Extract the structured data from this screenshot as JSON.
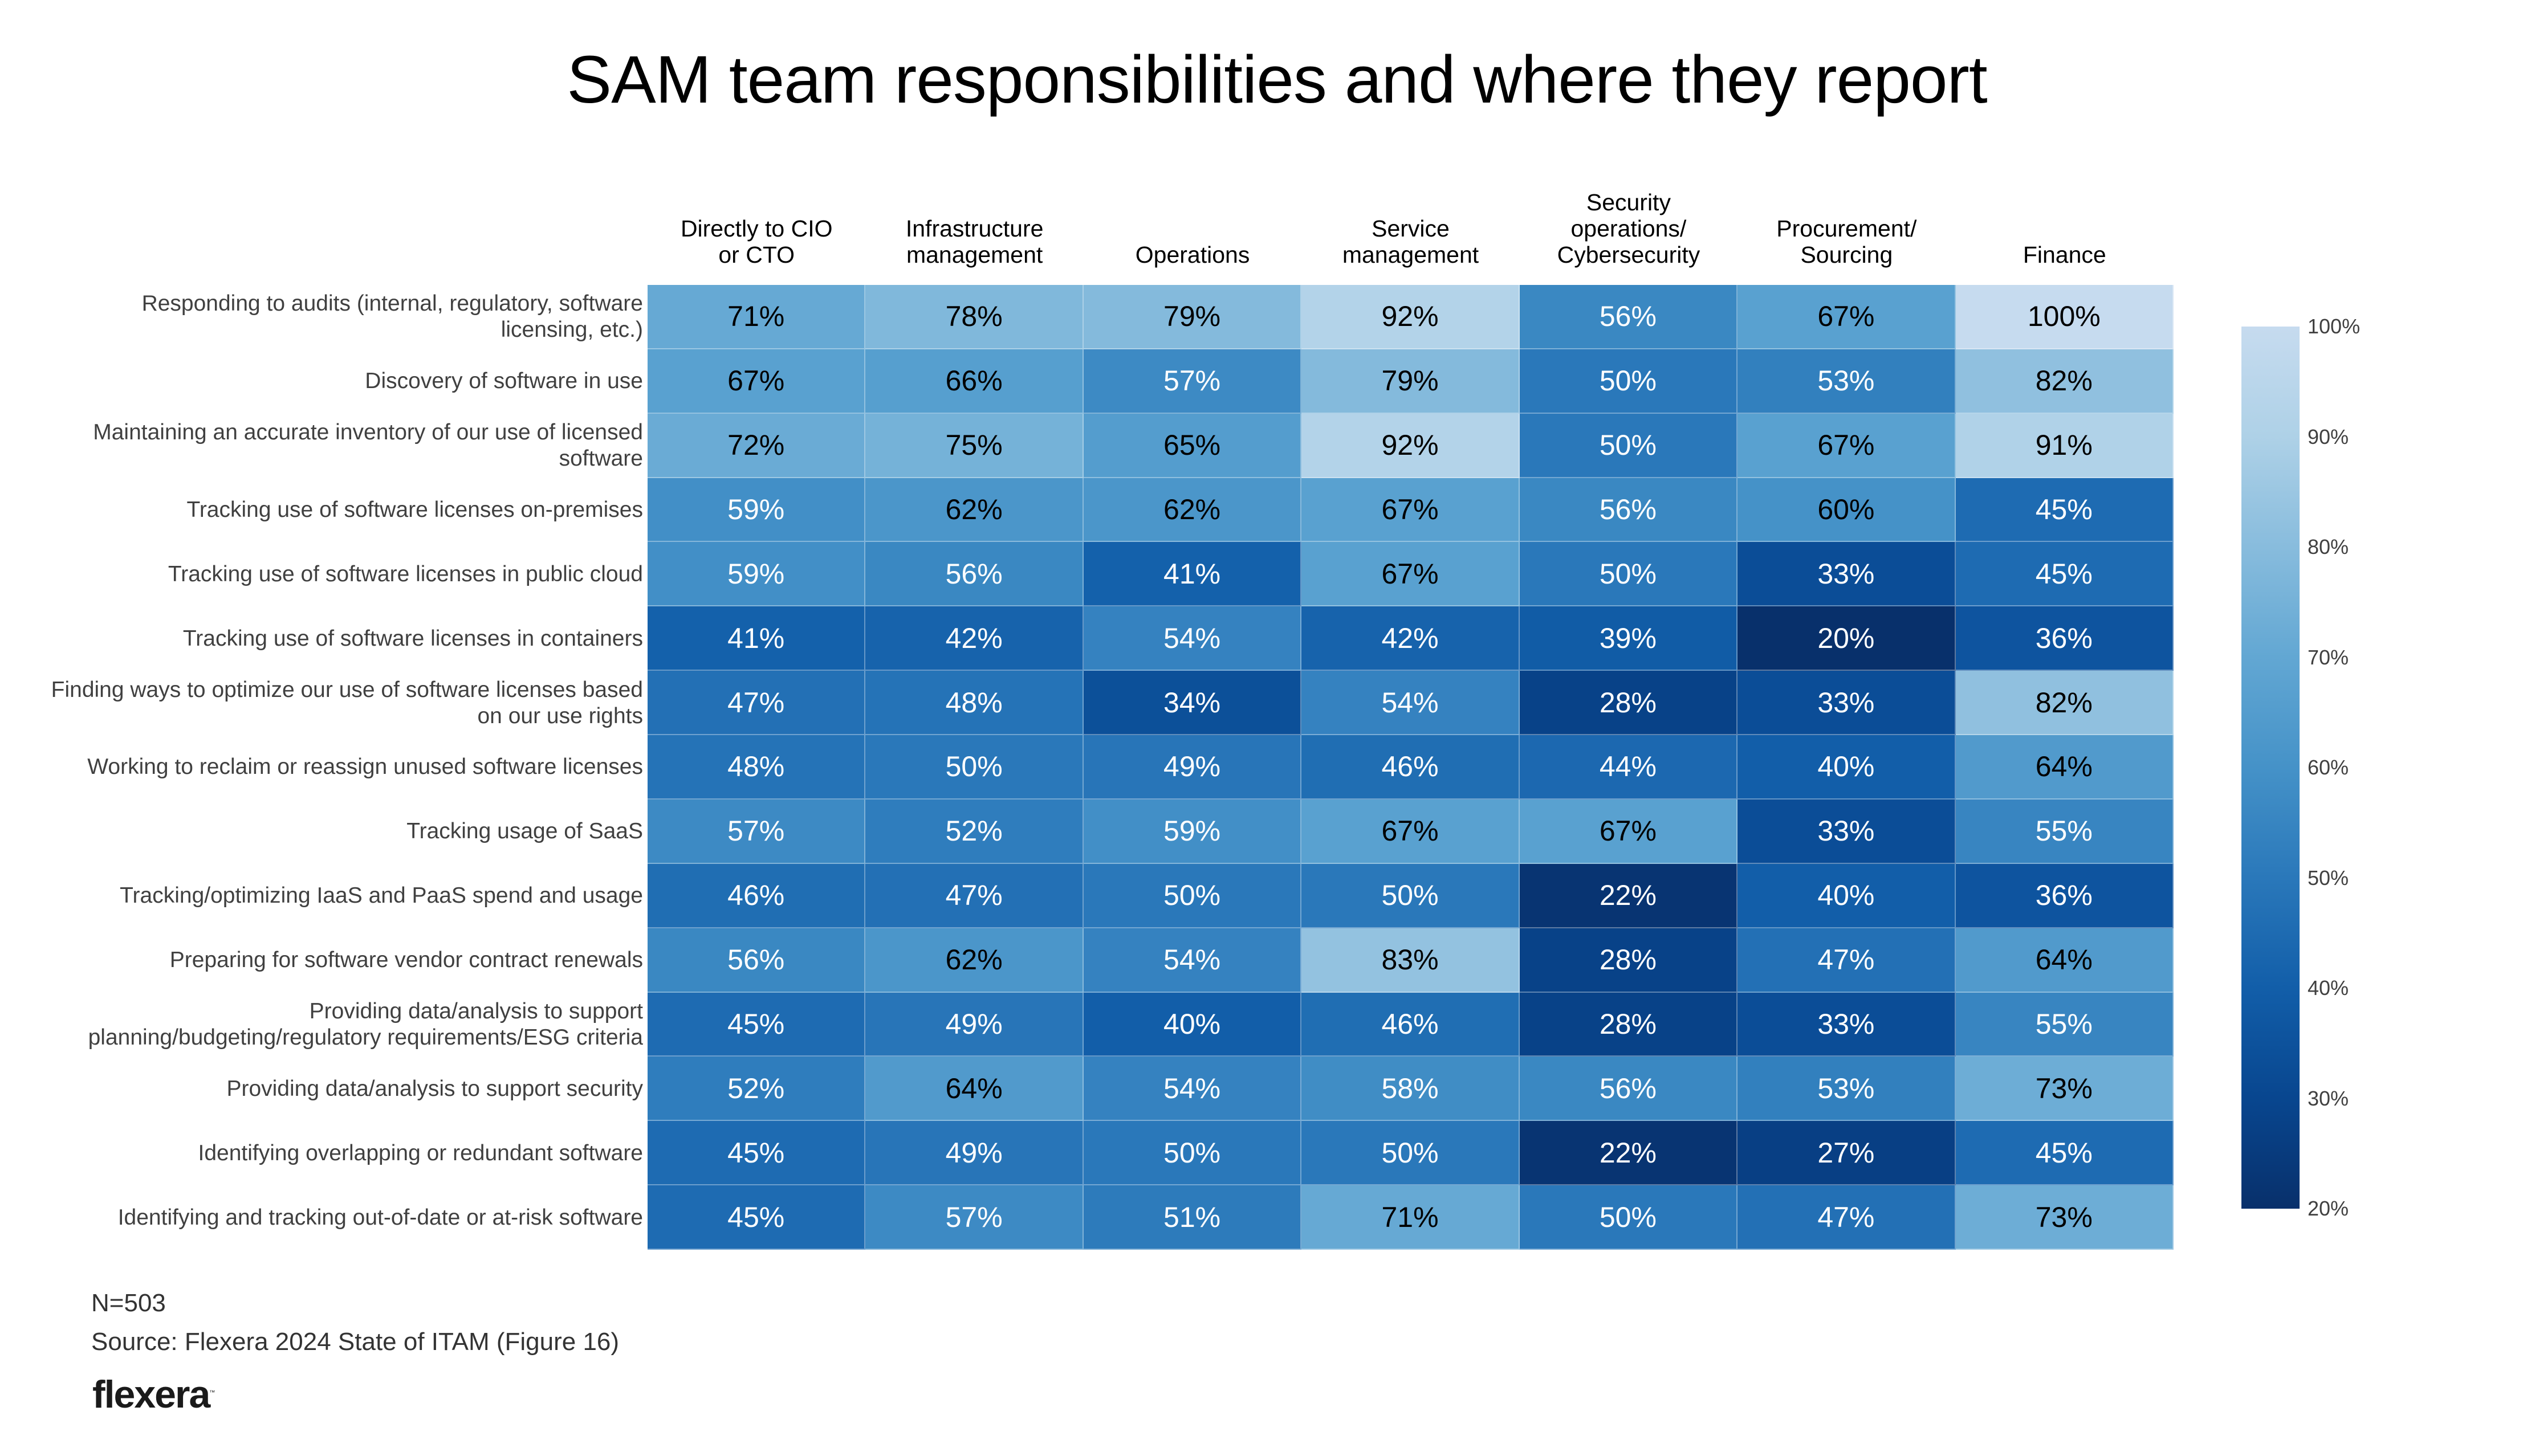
{
  "chart_data": {
    "type": "heatmap",
    "title": "SAM team responsibilities and where they report",
    "columns": [
      "Directly to CIO\nor CTO",
      "Infrastructure\nmanagement",
      "Operations",
      "Service\nmanagement",
      "Security\noperations/\nCybersecurity",
      "Procurement/\nSourcing",
      "Finance"
    ],
    "rows": [
      "Responding to audits (internal, regulatory, software\nlicensing, etc.)",
      "Discovery of software in use",
      "Maintaining an accurate inventory of our use of licensed\nsoftware",
      "Tracking use of software licenses on-premises",
      "Tracking use of software licenses in public cloud",
      "Tracking use of software licenses in containers",
      "Finding ways to optimize our use of software licenses based\non our use rights",
      "Working to reclaim or reassign unused software licenses",
      "Tracking usage of SaaS",
      "Tracking/optimizing IaaS and PaaS spend and usage",
      "Preparing for software vendor contract renewals",
      "Providing data/analysis to support\nplanning/budgeting/regulatory requirements/ESG criteria",
      "Providing data/analysis to support security",
      "Identifying overlapping or redundant software",
      "Identifying and tracking out-of-date or at-risk software"
    ],
    "values": [
      [
        71,
        78,
        79,
        92,
        56,
        67,
        100
      ],
      [
        67,
        66,
        57,
        79,
        50,
        53,
        82
      ],
      [
        72,
        75,
        65,
        92,
        50,
        67,
        91
      ],
      [
        59,
        62,
        62,
        67,
        56,
        60,
        45
      ],
      [
        59,
        56,
        41,
        67,
        50,
        33,
        45
      ],
      [
        41,
        42,
        54,
        42,
        39,
        20,
        36
      ],
      [
        47,
        48,
        34,
        54,
        28,
        33,
        82
      ],
      [
        48,
        50,
        49,
        46,
        44,
        40,
        64
      ],
      [
        57,
        52,
        59,
        67,
        67,
        33,
        55
      ],
      [
        46,
        47,
        50,
        50,
        22,
        40,
        36
      ],
      [
        56,
        62,
        54,
        83,
        28,
        47,
        64
      ],
      [
        45,
        49,
        40,
        46,
        28,
        33,
        55
      ],
      [
        52,
        64,
        54,
        58,
        56,
        53,
        73
      ],
      [
        45,
        49,
        50,
        50,
        22,
        27,
        45
      ],
      [
        45,
        57,
        51,
        71,
        50,
        47,
        73
      ]
    ],
    "value_format": "{v}%",
    "colorscale": {
      "name": "Blues (reversed, low=dark)",
      "range": [
        20,
        100
      ],
      "stops": [
        {
          "value": 20,
          "color": "#08306b"
        },
        {
          "value": 30,
          "color": "#08468f"
        },
        {
          "value": 40,
          "color": "#125ea9"
        },
        {
          "value": 50,
          "color": "#2a78ba"
        },
        {
          "value": 60,
          "color": "#4592c8"
        },
        {
          "value": 70,
          "color": "#62a7d3"
        },
        {
          "value": 80,
          "color": "#88bcdd"
        },
        {
          "value": 90,
          "color": "#aed1e7"
        },
        {
          "value": 100,
          "color": "#c6dbef"
        }
      ],
      "ticks": [
        "100%",
        "90%",
        "80%",
        "70%",
        "60%",
        "50%",
        "40%",
        "30%",
        "20%"
      ],
      "tick_values": [
        100,
        90,
        80,
        70,
        60,
        50,
        40,
        30,
        20
      ],
      "placement": "right"
    },
    "text_color_threshold": 60,
    "text_color_dark": "#000000",
    "text_color_light": "#ffffff"
  },
  "footer": {
    "n": "N=503",
    "source": "Source: Flexera 2024 State of ITAM (Figure 16)",
    "logo": "flexera",
    "logo_mark": "™"
  }
}
